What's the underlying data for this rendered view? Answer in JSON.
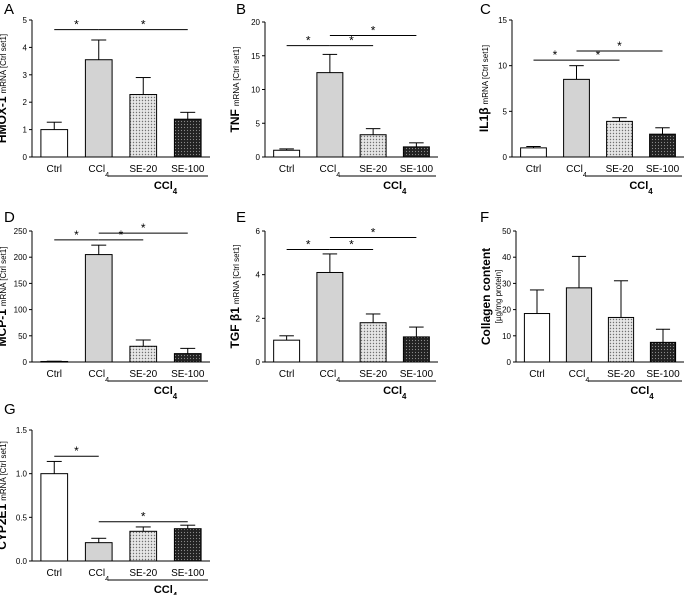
{
  "figure": {
    "categories": [
      "Ctrl",
      "CCl4",
      "SE-20",
      "SE-100"
    ],
    "group_label": "CCl4",
    "colors": {
      "ctrl": "#ffffff",
      "ccl4": "#d3d3d3",
      "se20": "#cfcfcf",
      "se100": "#333333",
      "stroke": "#000000"
    }
  },
  "chart_data": [
    {
      "id": "A",
      "type": "bar",
      "panel_letter": "A",
      "ylabel_main": "HMOX-1",
      "ylabel_sub": "mRNA [Ctrl set1]",
      "categories": [
        "Ctrl",
        "CCl4",
        "SE-20",
        "SE-100"
      ],
      "values": [
        1.0,
        3.55,
        2.28,
        1.38
      ],
      "errors": [
        0.27,
        0.72,
        0.62,
        0.25
      ],
      "ylim": [
        0,
        5
      ],
      "yticks": [
        0,
        1,
        2,
        3,
        4,
        5
      ],
      "ytick_labels": [
        "0",
        "1",
        "2",
        "3",
        "4",
        "5"
      ],
      "significance": [
        {
          "from": 0,
          "to": 1,
          "level": 4.65,
          "label": "*"
        },
        {
          "from": 1,
          "to": 3,
          "level": 4.65,
          "label": "*"
        }
      ]
    },
    {
      "id": "B",
      "type": "bar",
      "panel_letter": "B",
      "ylabel_main": "TNF",
      "ylabel_sub": "mRNA [Ctrl set1]",
      "categories": [
        "Ctrl",
        "CCl4",
        "SE-20",
        "SE-100"
      ],
      "values": [
        1.0,
        12.5,
        3.3,
        1.5
      ],
      "errors": [
        0.2,
        2.7,
        0.9,
        0.6
      ],
      "ylim": [
        0,
        20
      ],
      "yticks": [
        0,
        5,
        10,
        15,
        20
      ],
      "ytick_labels": [
        "0",
        "5",
        "10",
        "15",
        "20"
      ],
      "significance": [
        {
          "from": 0,
          "to": 1,
          "level": 16.5,
          "label": "*"
        },
        {
          "from": 1,
          "to": 2,
          "level": 16.5,
          "label": "*"
        },
        {
          "from": 1,
          "to": 3,
          "level": 18.0,
          "label": "*"
        }
      ]
    },
    {
      "id": "C",
      "type": "bar",
      "panel_letter": "C",
      "ylabel_main": "IL1β",
      "ylabel_sub": "mRNA [Ctrl set1]",
      "categories": [
        "Ctrl",
        "CCl4",
        "SE-20",
        "SE-100"
      ],
      "values": [
        1.0,
        8.5,
        3.9,
        2.5
      ],
      "errors": [
        0.15,
        1.5,
        0.4,
        0.7
      ],
      "ylim": [
        0,
        15
      ],
      "yticks": [
        0,
        5,
        10,
        15
      ],
      "ytick_labels": [
        "0",
        "5",
        "10",
        "15"
      ],
      "significance": [
        {
          "from": 0,
          "to": 1,
          "level": 10.6,
          "label": "*"
        },
        {
          "from": 1,
          "to": 2,
          "level": 10.6,
          "label": "*"
        },
        {
          "from": 1,
          "to": 3,
          "level": 11.6,
          "label": "*"
        }
      ]
    },
    {
      "id": "D",
      "type": "bar",
      "panel_letter": "D",
      "ylabel_main": "MCP-1",
      "ylabel_sub": "mRNA [Ctrl set1]",
      "categories": [
        "Ctrl",
        "CCl4",
        "SE-20",
        "SE-100"
      ],
      "values": [
        1.0,
        205,
        30,
        16
      ],
      "errors": [
        0.5,
        18,
        12,
        10
      ],
      "ylim": [
        0,
        250
      ],
      "yticks": [
        0,
        50,
        100,
        150,
        200,
        250
      ],
      "ytick_labels": [
        "0",
        "50",
        "100",
        "150",
        "200",
        "250"
      ],
      "significance": [
        {
          "from": 0,
          "to": 1,
          "level": 233,
          "label": "*"
        },
        {
          "from": 1,
          "to": 2,
          "level": 233,
          "label": "*"
        },
        {
          "from": 1,
          "to": 3,
          "level": 246,
          "label": "*"
        }
      ]
    },
    {
      "id": "E",
      "type": "bar",
      "panel_letter": "E",
      "ylabel_main": "TGF β1",
      "ylabel_sub": "mRNA [Ctrl set1]",
      "categories": [
        "Ctrl",
        "CCl4",
        "SE-20",
        "SE-100"
      ],
      "values": [
        1.0,
        4.1,
        1.8,
        1.15
      ],
      "errors": [
        0.2,
        0.85,
        0.4,
        0.45
      ],
      "ylim": [
        0,
        6
      ],
      "yticks": [
        0,
        2,
        4,
        6
      ],
      "ytick_labels": [
        "0",
        "2",
        "4",
        "6"
      ],
      "significance": [
        {
          "from": 0,
          "to": 1,
          "level": 5.15,
          "label": "*"
        },
        {
          "from": 1,
          "to": 2,
          "level": 5.15,
          "label": "*"
        },
        {
          "from": 1,
          "to": 3,
          "level": 5.7,
          "label": "*"
        }
      ]
    },
    {
      "id": "F",
      "type": "bar",
      "panel_letter": "F",
      "ylabel_main": "Collagen content",
      "ylabel_sub": "[µg/mg protein]",
      "categories": [
        "Ctrl",
        "CCl4",
        "SE-20",
        "SE-100"
      ],
      "values": [
        18.5,
        28.3,
        17.0,
        7.5
      ],
      "errors": [
        9.0,
        12.0,
        14.0,
        5.0
      ],
      "ylim": [
        0,
        50
      ],
      "yticks": [
        0,
        10,
        20,
        30,
        40,
        50
      ],
      "ytick_labels": [
        "0",
        "10",
        "20",
        "30",
        "40",
        "50"
      ],
      "significance": []
    },
    {
      "id": "G",
      "type": "bar",
      "panel_letter": "G",
      "ylabel_main": "CYP2E1",
      "ylabel_sub": "mRNA [Ctrl set1]",
      "categories": [
        "Ctrl",
        "CCl4",
        "SE-20",
        "SE-100"
      ],
      "values": [
        1.0,
        0.21,
        0.34,
        0.37
      ],
      "errors": [
        0.14,
        0.05,
        0.05,
        0.04
      ],
      "ylim": [
        0,
        1.5
      ],
      "yticks": [
        0,
        0.5,
        1.0,
        1.5
      ],
      "ytick_labels": [
        "0.0",
        "0.5",
        "1.0",
        "1.5"
      ],
      "significance": [
        {
          "from": 0,
          "to": 1,
          "level": 1.2,
          "label": "*"
        },
        {
          "from": 1,
          "to": 3,
          "level": 0.45,
          "label": "*"
        }
      ]
    }
  ]
}
